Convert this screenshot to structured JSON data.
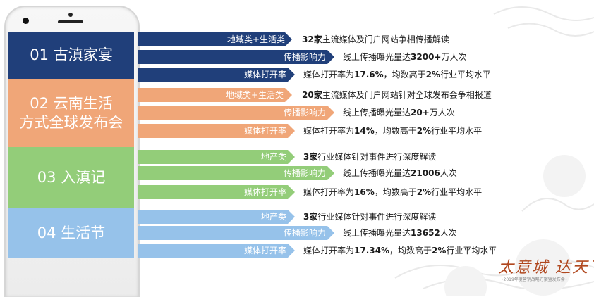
{
  "blocks": [
    {
      "label": "01 古滇家宴"
    },
    {
      "label": "02 云南生活\n方式全球发布会"
    },
    {
      "label": "03   入滇记"
    },
    {
      "label": "04   生活节"
    }
  ],
  "rows": [
    {
      "tag": "地域类+生活类",
      "strong": "32家",
      "text": "主流媒体及门户网站争相传播解读"
    },
    {
      "tag": "传播影响力",
      "pre": "线上传播曝光量达",
      "strong": "3200+",
      "text": "万人次"
    },
    {
      "tag": "媒体打开率",
      "pre": "媒体打开率为",
      "strong": "17.6%",
      "text": "，均数高于",
      "strong2": "2%",
      "text2": "行业平均水平"
    },
    {
      "tag": "地域类+生活类",
      "strong": "20家",
      "text": "主流媒体及门户网站针对全球发布会争相报道"
    },
    {
      "tag": "传播影响力",
      "pre": "线上传播曝光量达",
      "strong": "20+",
      "text": "万人次"
    },
    {
      "tag": "媒体打开率",
      "pre": "媒体打开率为",
      "strong": "14%",
      "text": "，均数高于",
      "strong2": "2%",
      "text2": "行业平均水平"
    },
    {
      "tag": "地产类",
      "strong": "3家",
      "text": "行业媒体针对事件进行深度解读"
    },
    {
      "tag": "传播影响力",
      "pre": "线上传播曝光量达",
      "strong": "21006",
      "text": "人次"
    },
    {
      "tag": "媒体打开率",
      "pre": "媒体打开率为",
      "strong": "16%",
      "text": "，均数高于",
      "strong2": "2%",
      "text2": "行业平均水平"
    },
    {
      "tag": "地产类",
      "strong": "3家",
      "text": "行业媒体针对事件进行深度解读"
    },
    {
      "tag": "传播影响力",
      "pre": "线上传播曝光量达",
      "strong": "13652",
      "text": "人次"
    },
    {
      "tag": "媒体打开率",
      "pre": "媒体打开率为",
      "strong": "17.34%",
      "text": "，均数高于",
      "strong2": "2%",
      "text2": "行业平均水平"
    }
  ],
  "signature": {
    "main": "太意城 达天下",
    "sub": "•2019年度营销战略方案暨发布会•"
  },
  "colors": {
    "navy": "#203f7a",
    "orange": "#f0a678",
    "green": "#93cd79",
    "light_blue": "#96c2ea"
  }
}
